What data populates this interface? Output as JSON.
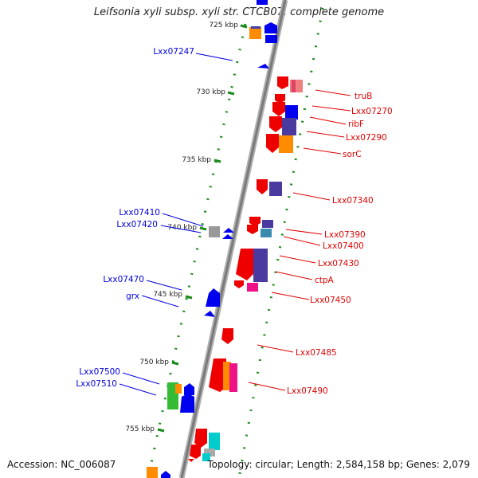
{
  "title": "Leifsonia xyli subsp. xyli str. CTCB07, complete genome",
  "footer": {
    "accession": "Accession: NC_006087",
    "topology": "Topology: circular; Length: 2,584,158 bp; Genes: 2,079"
  },
  "colors": {
    "backbone": "#8a8a8a",
    "dots": "#1a8a1a",
    "right_labels": "#e00000",
    "left_labels": "#0000dd"
  },
  "kbp_ticks": [
    "725 kbp",
    "730 kbp",
    "735 kbp",
    "740 kbp",
    "745 kbp",
    "750 kbp",
    "755 kbp"
  ],
  "right_labels": [
    "truB",
    "Lxx07270",
    "ribF",
    "Lxx07290",
    "sorC",
    "Lxx07340",
    "Lxx07390",
    "Lxx07400",
    "Lxx07430",
    "ctpA",
    "Lxx07450",
    "Lxx07485",
    "Lxx07490"
  ],
  "left_labels": [
    "Lxx07247",
    "Lxx07410",
    "Lxx07420",
    "Lxx07470",
    "grx",
    "Lxx07500",
    "Lxx07510"
  ]
}
